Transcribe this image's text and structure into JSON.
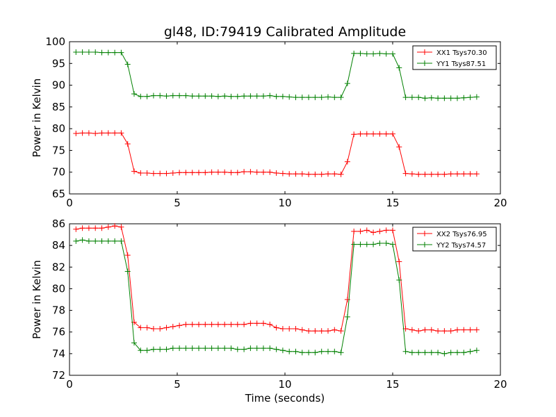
{
  "title": "gl48, ID:79419 Calibrated Amplitude",
  "colors": {
    "red": "#ff0000",
    "green": "#008000"
  },
  "chart_data": [
    {
      "type": "line",
      "ylabel": "Power in Kelvin",
      "xlabel": "",
      "xlim": [
        0,
        20
      ],
      "ylim": [
        65,
        100
      ],
      "xticks": [
        0,
        5,
        10,
        15,
        20
      ],
      "yticks": [
        65,
        70,
        75,
        80,
        85,
        90,
        95,
        100
      ],
      "legend_position": "top-right",
      "x": [
        0.3,
        0.6,
        0.9,
        1.2,
        1.5,
        1.8,
        2.1,
        2.4,
        2.7,
        3.0,
        3.3,
        3.6,
        3.9,
        4.2,
        4.5,
        4.8,
        5.1,
        5.4,
        5.7,
        6.0,
        6.3,
        6.6,
        6.9,
        7.2,
        7.5,
        7.8,
        8.1,
        8.4,
        8.7,
        9.0,
        9.3,
        9.6,
        9.9,
        10.2,
        10.5,
        10.8,
        11.1,
        11.4,
        11.7,
        12.0,
        12.3,
        12.6,
        12.9,
        13.2,
        13.5,
        13.8,
        14.1,
        14.4,
        14.7,
        15.0,
        15.3,
        15.6,
        15.9,
        16.2,
        16.5,
        16.8,
        17.1,
        17.4,
        17.7,
        18.0,
        18.3,
        18.6,
        18.9
      ],
      "series": [
        {
          "name": "XX1 Tsys70.30",
          "color": "red",
          "values": [
            78.9,
            79.0,
            79.0,
            78.9,
            79.0,
            79.0,
            79.0,
            79.0,
            76.5,
            70.2,
            69.8,
            69.8,
            69.7,
            69.7,
            69.7,
            69.8,
            69.9,
            69.9,
            69.9,
            69.9,
            69.9,
            70.0,
            70.0,
            70.0,
            69.9,
            69.9,
            70.1,
            70.1,
            70.0,
            70.0,
            70.0,
            69.8,
            69.7,
            69.6,
            69.6,
            69.6,
            69.5,
            69.5,
            69.5,
            69.6,
            69.6,
            69.5,
            72.4,
            78.7,
            78.8,
            78.8,
            78.8,
            78.8,
            78.8,
            78.8,
            75.8,
            69.7,
            69.6,
            69.5,
            69.5,
            69.5,
            69.5,
            69.5,
            69.6,
            69.6,
            69.6,
            69.6,
            69.6
          ]
        },
        {
          "name": "YY1 Tsys87.51",
          "color": "green",
          "values": [
            97.6,
            97.6,
            97.6,
            97.6,
            97.5,
            97.5,
            97.5,
            97.5,
            94.8,
            88.0,
            87.4,
            87.4,
            87.6,
            87.6,
            87.5,
            87.6,
            87.6,
            87.6,
            87.5,
            87.5,
            87.5,
            87.5,
            87.4,
            87.5,
            87.4,
            87.4,
            87.5,
            87.5,
            87.5,
            87.5,
            87.6,
            87.4,
            87.4,
            87.3,
            87.2,
            87.2,
            87.2,
            87.2,
            87.2,
            87.3,
            87.2,
            87.2,
            90.4,
            97.3,
            97.3,
            97.2,
            97.2,
            97.3,
            97.2,
            97.2,
            94.0,
            87.2,
            87.2,
            87.2,
            87.0,
            87.1,
            87.0,
            87.0,
            87.0,
            87.0,
            87.1,
            87.2,
            87.3
          ]
        }
      ]
    },
    {
      "type": "line",
      "ylabel": "Power in Kelvin",
      "xlabel": "Time (seconds)",
      "xlim": [
        0,
        20
      ],
      "ylim": [
        72,
        86
      ],
      "xticks": [
        0,
        5,
        10,
        15,
        20
      ],
      "yticks": [
        72,
        74,
        76,
        78,
        80,
        82,
        84,
        86
      ],
      "legend_position": "top-right",
      "x": [
        0.3,
        0.6,
        0.9,
        1.2,
        1.5,
        1.8,
        2.1,
        2.4,
        2.7,
        3.0,
        3.3,
        3.6,
        3.9,
        4.2,
        4.5,
        4.8,
        5.1,
        5.4,
        5.7,
        6.0,
        6.3,
        6.6,
        6.9,
        7.2,
        7.5,
        7.8,
        8.1,
        8.4,
        8.7,
        9.0,
        9.3,
        9.6,
        9.9,
        10.2,
        10.5,
        10.8,
        11.1,
        11.4,
        11.7,
        12.0,
        12.3,
        12.6,
        12.9,
        13.2,
        13.5,
        13.8,
        14.1,
        14.4,
        14.7,
        15.0,
        15.3,
        15.6,
        15.9,
        16.2,
        16.5,
        16.8,
        17.1,
        17.4,
        17.7,
        18.0,
        18.3,
        18.6,
        18.9
      ],
      "series": [
        {
          "name": "XX2 Tsys76.95",
          "color": "red",
          "values": [
            85.5,
            85.6,
            85.6,
            85.6,
            85.6,
            85.7,
            85.8,
            85.7,
            83.1,
            76.9,
            76.4,
            76.4,
            76.3,
            76.3,
            76.4,
            76.5,
            76.6,
            76.7,
            76.7,
            76.7,
            76.7,
            76.7,
            76.7,
            76.7,
            76.7,
            76.7,
            76.7,
            76.8,
            76.8,
            76.8,
            76.7,
            76.4,
            76.3,
            76.3,
            76.3,
            76.2,
            76.1,
            76.1,
            76.1,
            76.1,
            76.2,
            76.1,
            79.0,
            85.3,
            85.3,
            85.4,
            85.2,
            85.3,
            85.4,
            85.4,
            82.5,
            76.3,
            76.2,
            76.1,
            76.2,
            76.2,
            76.1,
            76.1,
            76.1,
            76.2,
            76.2,
            76.2,
            76.2
          ]
        },
        {
          "name": "YY2 Tsys74.57",
          "color": "green",
          "values": [
            84.4,
            84.5,
            84.4,
            84.4,
            84.4,
            84.4,
            84.4,
            84.4,
            81.6,
            75.0,
            74.3,
            74.3,
            74.4,
            74.4,
            74.4,
            74.5,
            74.5,
            74.5,
            74.5,
            74.5,
            74.5,
            74.5,
            74.5,
            74.5,
            74.5,
            74.4,
            74.4,
            74.5,
            74.5,
            74.5,
            74.5,
            74.4,
            74.3,
            74.2,
            74.2,
            74.1,
            74.1,
            74.1,
            74.2,
            74.2,
            74.2,
            74.1,
            77.4,
            84.1,
            84.1,
            84.1,
            84.1,
            84.2,
            84.2,
            84.1,
            80.8,
            74.2,
            74.1,
            74.1,
            74.1,
            74.1,
            74.1,
            74.0,
            74.1,
            74.1,
            74.1,
            74.2,
            74.3
          ]
        }
      ]
    }
  ]
}
